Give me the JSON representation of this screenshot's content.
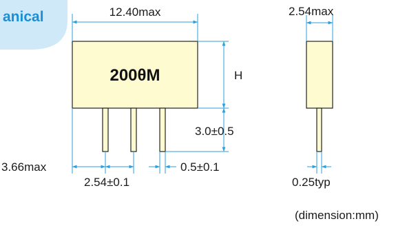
{
  "section": {
    "title": "anical"
  },
  "part": {
    "marking": "200θM"
  },
  "dimensions": {
    "body_width": "12.40max",
    "thickness": "2.54max",
    "height": "H",
    "lead_length": "3.0±0.5",
    "lead_offset": "3.66max",
    "lead_pitch": "2.54±0.1",
    "lead_width": "0.5±0.1",
    "lead_thickness": "0.25typ"
  },
  "note": "(dimension:mm)",
  "colors": {
    "body_fill": "#fffbd0",
    "dim_line": "#2aa0dc",
    "outline": "#222222",
    "badge": "#cfe9f8",
    "title": "#1a8fd6"
  }
}
